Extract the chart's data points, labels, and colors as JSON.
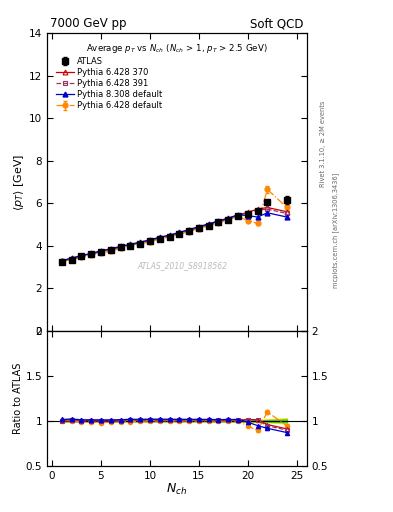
{
  "title_left": "7000 GeV pp",
  "title_right": "Soft QCD",
  "ylabel_main": "$\\langle p_T \\rangle$ [GeV]",
  "ylabel_ratio": "Ratio to ATLAS",
  "xlabel": "$N_{ch}$",
  "right_label_top": "Rivet 3.1.10, ≥ 2M events",
  "right_label_bot": "mcplots.cern.ch [arXiv:1306.3436]",
  "watermark": "ATLAS_2010_S8918562",
  "ylim_main": [
    0,
    14
  ],
  "ylim_ratio": [
    0.5,
    2.0
  ],
  "yticks_main": [
    0,
    2,
    4,
    6,
    8,
    10,
    12,
    14
  ],
  "nch_atlas": [
    1,
    2,
    3,
    4,
    5,
    6,
    7,
    8,
    9,
    10,
    11,
    12,
    13,
    14,
    15,
    16,
    17,
    18,
    19,
    20,
    21,
    22,
    24
  ],
  "pt_atlas": [
    3.25,
    3.35,
    3.5,
    3.6,
    3.72,
    3.82,
    3.92,
    4.0,
    4.1,
    4.2,
    4.32,
    4.42,
    4.55,
    4.68,
    4.82,
    4.95,
    5.1,
    5.22,
    5.38,
    5.5,
    5.65,
    6.05,
    6.15
  ],
  "pt_atlas_err": [
    0.03,
    0.03,
    0.03,
    0.03,
    0.03,
    0.03,
    0.03,
    0.03,
    0.03,
    0.03,
    0.03,
    0.03,
    0.03,
    0.03,
    0.03,
    0.04,
    0.04,
    0.04,
    0.05,
    0.06,
    0.07,
    0.1,
    0.18
  ],
  "nch_py6370": [
    1,
    2,
    3,
    4,
    5,
    6,
    7,
    8,
    9,
    10,
    11,
    12,
    13,
    14,
    15,
    16,
    17,
    18,
    19,
    20,
    21,
    22,
    24
  ],
  "pt_py6370": [
    3.28,
    3.4,
    3.52,
    3.62,
    3.74,
    3.84,
    3.95,
    4.05,
    4.15,
    4.26,
    4.38,
    4.48,
    4.61,
    4.74,
    4.88,
    5.01,
    5.15,
    5.28,
    5.44,
    5.58,
    5.72,
    5.8,
    5.6
  ],
  "nch_py6391": [
    1,
    2,
    3,
    4,
    5,
    6,
    7,
    8,
    9,
    10,
    11,
    12,
    13,
    14,
    15,
    16,
    17,
    18,
    19,
    20,
    21,
    22,
    24
  ],
  "pt_py6391": [
    3.26,
    3.38,
    3.5,
    3.6,
    3.72,
    3.82,
    3.93,
    4.03,
    4.13,
    4.24,
    4.36,
    4.46,
    4.59,
    4.72,
    4.86,
    4.99,
    5.13,
    5.26,
    5.42,
    5.56,
    5.68,
    5.72,
    5.52
  ],
  "nch_py6def": [
    1,
    2,
    3,
    4,
    5,
    6,
    7,
    8,
    9,
    10,
    11,
    12,
    13,
    14,
    15,
    16,
    17,
    18,
    19,
    20,
    21,
    22,
    24
  ],
  "pt_py6def": [
    3.26,
    3.35,
    3.45,
    3.55,
    3.65,
    3.76,
    3.87,
    3.97,
    4.08,
    4.19,
    4.31,
    4.41,
    4.54,
    4.67,
    4.81,
    4.94,
    5.08,
    5.21,
    5.38,
    5.18,
    5.05,
    6.65,
    5.8
  ],
  "pt_py6def_err": [
    0.03,
    0.03,
    0.03,
    0.03,
    0.03,
    0.03,
    0.03,
    0.03,
    0.03,
    0.03,
    0.03,
    0.03,
    0.03,
    0.03,
    0.03,
    0.03,
    0.03,
    0.03,
    0.03,
    0.05,
    0.07,
    0.15,
    0.12
  ],
  "nch_py8def": [
    1,
    2,
    3,
    4,
    5,
    6,
    7,
    8,
    9,
    10,
    11,
    12,
    13,
    14,
    15,
    16,
    17,
    18,
    19,
    20,
    21,
    22,
    24
  ],
  "pt_py8def": [
    3.3,
    3.42,
    3.54,
    3.64,
    3.76,
    3.86,
    3.97,
    4.07,
    4.17,
    4.28,
    4.4,
    4.5,
    4.63,
    4.76,
    4.9,
    5.03,
    5.17,
    5.3,
    5.46,
    5.42,
    5.35,
    5.55,
    5.35
  ],
  "color_atlas": "#000000",
  "color_py6370": "#cc0000",
  "color_py6391": "#993366",
  "color_py6def": "#ff8800",
  "color_py8def": "#0000cc",
  "band_green": "#44bb44",
  "band_yellow": "#eeee00",
  "xlim": [
    -0.5,
    26
  ]
}
